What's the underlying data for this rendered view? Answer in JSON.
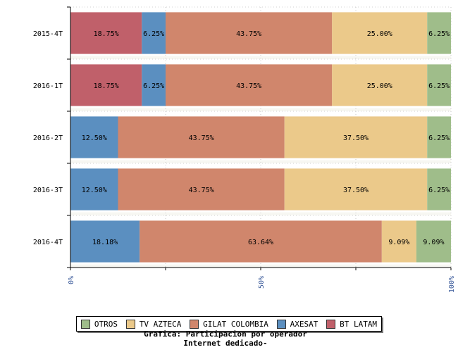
{
  "chart_data": {
    "type": "bar",
    "orientation": "horizontal",
    "stacked": "percent",
    "title_lines": [
      "Grafica: Participacion por operador",
      "Internet dedicado-"
    ],
    "categories": [
      "2015-4T",
      "2016-1T",
      "2016-2T",
      "2016-3T",
      "2016-4T"
    ],
    "series": [
      {
        "name": "BT LATAM",
        "color": "#c0606a",
        "values": [
          18.75,
          18.75,
          0,
          0,
          0
        ],
        "labels": [
          "18.75%",
          "18.75%",
          "",
          "",
          ""
        ]
      },
      {
        "name": "AXESAT",
        "color": "#5b8fc0",
        "values": [
          6.25,
          6.25,
          12.5,
          12.5,
          18.18
        ],
        "labels": [
          "6.25%",
          "6.25%",
          "12.50%",
          "12.50%",
          "18.18%"
        ]
      },
      {
        "name": "GILAT COLOMBIA",
        "color": "#d0866c",
        "values": [
          43.75,
          43.75,
          43.75,
          43.75,
          63.64
        ],
        "labels": [
          "43.75%",
          "43.75%",
          "43.75%",
          "43.75%",
          "63.64%"
        ]
      },
      {
        "name": "TV AZTECA",
        "color": "#ebc98a",
        "values": [
          25.0,
          25.0,
          37.5,
          37.5,
          9.09
        ],
        "labels": [
          "25.00%",
          "25.00%",
          "37.50%",
          "37.50%",
          "9.09%"
        ]
      },
      {
        "name": "OTROS",
        "color": "#9fbd8a",
        "values": [
          6.25,
          6.25,
          6.25,
          6.25,
          9.09
        ],
        "labels": [
          "6.25%",
          "6.25%",
          "6.25%",
          "6.25%",
          "9.09%"
        ]
      }
    ],
    "xlim": [
      0,
      100
    ],
    "x_ticks": [
      0,
      50,
      100
    ],
    "x_tick_labels": [
      "0%",
      "50%",
      "100%"
    ],
    "grid": true,
    "legend_order": [
      "OTROS",
      "TV AZTECA",
      "GILAT COLOMBIA",
      "AXESAT",
      "BT LATAM"
    ],
    "legend_position": "bottom"
  }
}
